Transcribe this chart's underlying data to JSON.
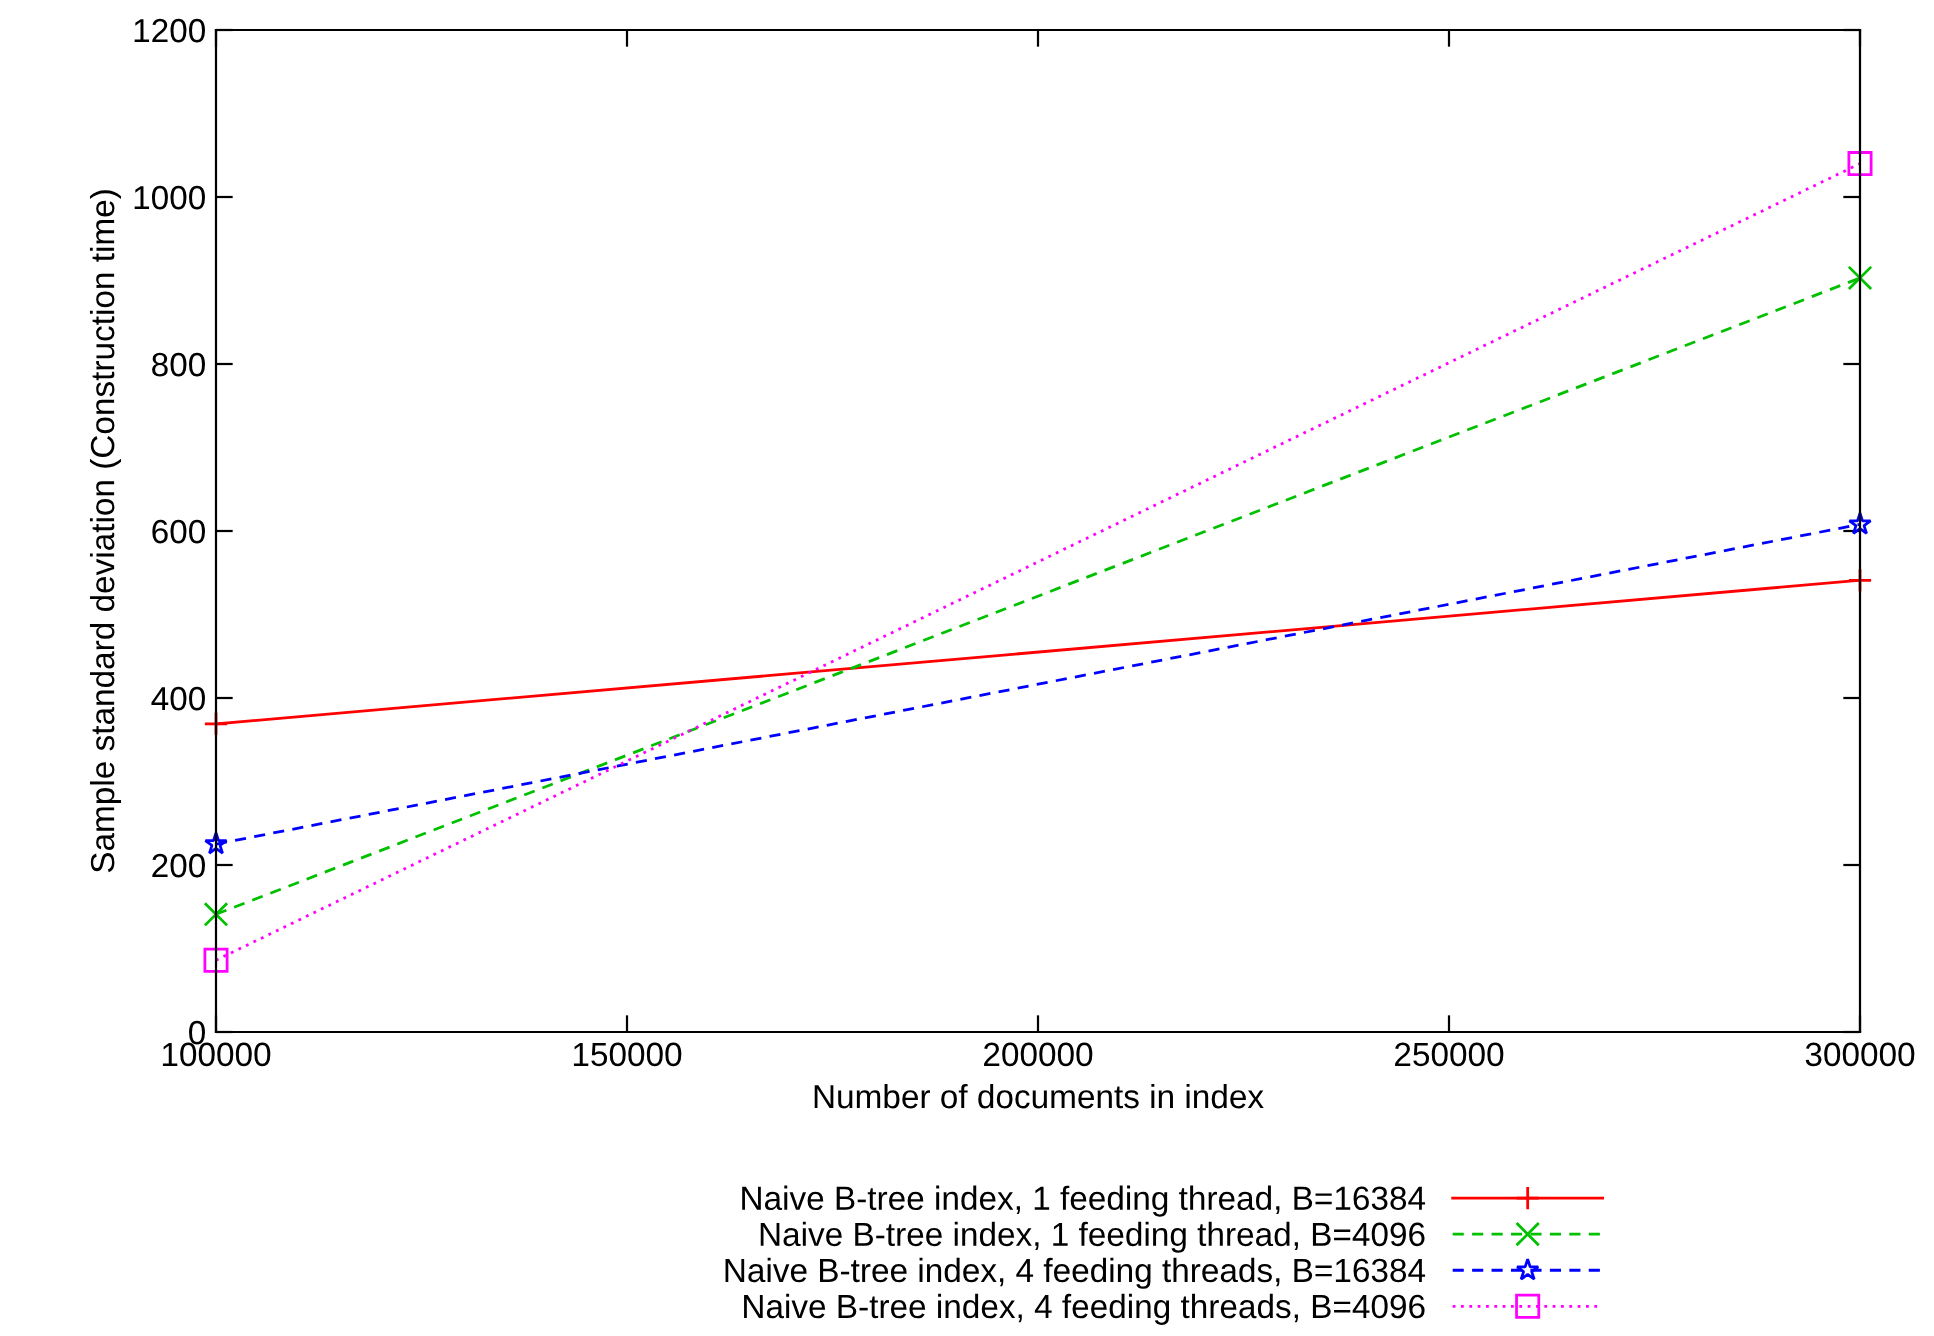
{
  "chart_data": {
    "type": "line",
    "xlabel": "Number of documents in index",
    "ylabel": "Sample standard deviation (Construction time)",
    "x": [
      100000,
      300000
    ],
    "series": [
      {
        "name": "Naive B-tree index, 1 feeding thread, B=16384",
        "color": "#ff0000",
        "values": [
          369,
          541
        ],
        "marker": "plus",
        "line_style": "solid"
      },
      {
        "name": "Naive B-tree index, 1 feeding thread, B=4096",
        "color": "#00c000",
        "values": [
          141,
          903
        ],
        "marker": "cross",
        "line_style": "dashed"
      },
      {
        "name": "Naive B-tree index, 4 feeding threads, B=16384",
        "color": "#0000ff",
        "values": [
          225,
          608
        ],
        "marker": "star",
        "line_style": "dashed"
      },
      {
        "name": "Naive B-tree index, 4 feeding threads, B=4096",
        "color": "#ff00ff",
        "values": [
          86,
          1040
        ],
        "marker": "square",
        "line_style": "dotted"
      }
    ],
    "xlim": [
      100000,
      300000
    ],
    "xticks": [
      100000,
      150000,
      200000,
      250000,
      300000
    ],
    "ylim": [
      0,
      1200
    ],
    "yticks": [
      0,
      200,
      400,
      600,
      800,
      1000,
      1200
    ],
    "grid": false,
    "legend": "bottom"
  }
}
